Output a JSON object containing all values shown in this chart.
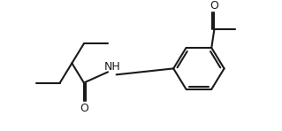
{
  "bg_color": "#ffffff",
  "line_color": "#1a1a1a",
  "line_width": 1.5,
  "font_size": 8,
  "figsize": [
    3.19,
    1.48
  ],
  "dpi": 100,
  "atoms": {
    "NH": "NH",
    "O1": "O",
    "O2": "O"
  },
  "xlim": [
    0,
    10
  ],
  "ylim": [
    0,
    4.65
  ]
}
